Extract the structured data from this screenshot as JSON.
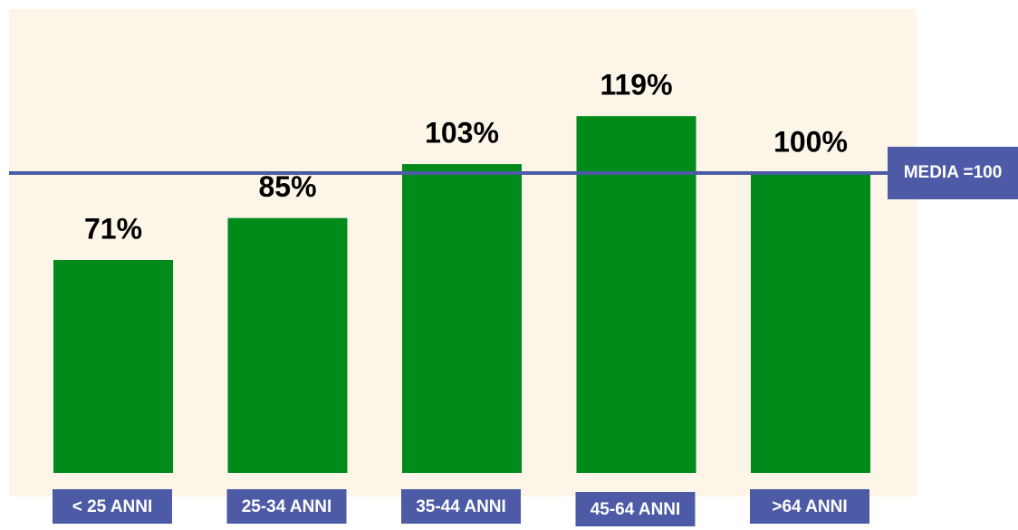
{
  "chart_data": {
    "type": "bar",
    "categories": [
      "< 25 ANNI",
      "25-34 ANNI",
      "35-44 ANNI",
      "45-64 ANNI",
      ">64 ANNI"
    ],
    "values": [
      71,
      85,
      103,
      119,
      100
    ],
    "value_labels": [
      "71%",
      "85%",
      "103%",
      "119%",
      "100%"
    ],
    "color": "#008a1a",
    "ylim": [
      0,
      155
    ],
    "reference_line": {
      "value": 100,
      "label": "MEDIA =100",
      "color": "#4d5aa6"
    }
  }
}
